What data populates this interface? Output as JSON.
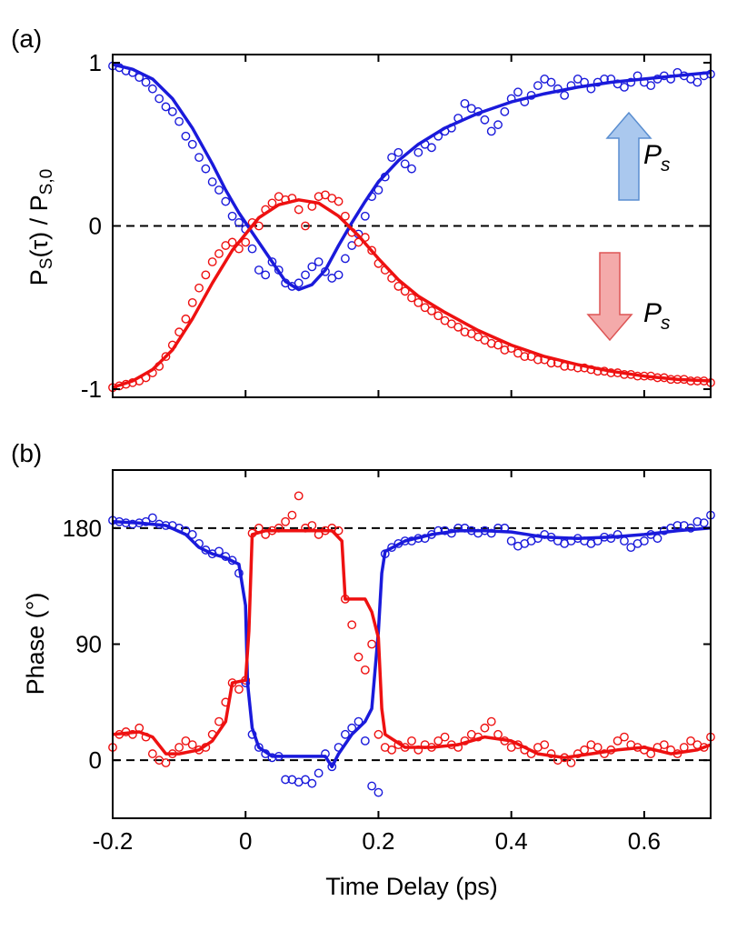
{
  "chart_data": [
    {
      "type": "line",
      "panel_label": "(a)",
      "ylabel": "P_S(τ) / P_S,0",
      "xlim": [
        -0.2,
        0.7
      ],
      "ylim": [
        -1.05,
        1.05
      ],
      "xticks": [
        "-0.2",
        "0",
        "0.2",
        "0.4",
        "0.6"
      ],
      "xtick_values": [
        -0.2,
        0,
        0.2,
        0.4,
        0.6
      ],
      "yticks": [
        "-1",
        "0",
        "1"
      ],
      "ytick_values": [
        -1,
        0,
        1
      ],
      "reference_line": 0,
      "legend": [
        {
          "label": "P",
          "subscript": "s",
          "arrow": "up",
          "color": "#aac8ee"
        },
        {
          "label": "P",
          "subscript": "s",
          "arrow": "down",
          "color": "#f4aaaa"
        }
      ],
      "series": [
        {
          "color": "#1a1adb",
          "style": "fit",
          "x": [
            -0.2,
            -0.17,
            -0.14,
            -0.11,
            -0.08,
            -0.05,
            -0.03,
            -0.01,
            0.0,
            0.02,
            0.04,
            0.06,
            0.08,
            0.1,
            0.12,
            0.14,
            0.16,
            0.18,
            0.2,
            0.23,
            0.26,
            0.3,
            0.35,
            0.4,
            0.45,
            0.5,
            0.55,
            0.6,
            0.65,
            0.7
          ],
          "y": [
            0.99,
            0.96,
            0.9,
            0.78,
            0.6,
            0.38,
            0.22,
            0.08,
            0.02,
            -0.1,
            -0.22,
            -0.34,
            -0.39,
            -0.36,
            -0.27,
            -0.12,
            0.02,
            0.15,
            0.27,
            0.4,
            0.5,
            0.6,
            0.69,
            0.76,
            0.81,
            0.85,
            0.88,
            0.9,
            0.92,
            0.94
          ]
        },
        {
          "color": "#ee1111",
          "style": "fit",
          "x": [
            -0.2,
            -0.17,
            -0.14,
            -0.11,
            -0.08,
            -0.05,
            -0.02,
            0.0,
            0.02,
            0.05,
            0.08,
            0.11,
            0.14,
            0.17,
            0.2,
            0.23,
            0.26,
            0.3,
            0.35,
            0.4,
            0.45,
            0.5,
            0.55,
            0.6,
            0.65,
            0.7
          ],
          "y": [
            -0.99,
            -0.95,
            -0.88,
            -0.76,
            -0.57,
            -0.35,
            -0.15,
            -0.05,
            0.05,
            0.13,
            0.16,
            0.14,
            0.06,
            -0.06,
            -0.2,
            -0.33,
            -0.43,
            -0.53,
            -0.64,
            -0.73,
            -0.8,
            -0.85,
            -0.89,
            -0.92,
            -0.94,
            -0.95
          ]
        },
        {
          "color": "#1a1adb",
          "style": "markers",
          "x": [
            -0.2,
            -0.19,
            -0.18,
            -0.17,
            -0.16,
            -0.15,
            -0.14,
            -0.13,
            -0.12,
            -0.11,
            -0.1,
            -0.09,
            -0.08,
            -0.07,
            -0.06,
            -0.05,
            -0.04,
            -0.03,
            -0.02,
            -0.01,
            0.0,
            0.01,
            0.02,
            0.03,
            0.04,
            0.05,
            0.06,
            0.07,
            0.08,
            0.09,
            0.1,
            0.11,
            0.12,
            0.13,
            0.14,
            0.15,
            0.16,
            0.17,
            0.18,
            0.19,
            0.2,
            0.21,
            0.22,
            0.23,
            0.24,
            0.25,
            0.26,
            0.27,
            0.28,
            0.29,
            0.3,
            0.31,
            0.32,
            0.33,
            0.34,
            0.35,
            0.36,
            0.37,
            0.38,
            0.39,
            0.4,
            0.41,
            0.42,
            0.43,
            0.44,
            0.45,
            0.46,
            0.47,
            0.48,
            0.49,
            0.5,
            0.51,
            0.52,
            0.53,
            0.54,
            0.55,
            0.56,
            0.57,
            0.58,
            0.59,
            0.6,
            0.61,
            0.62,
            0.63,
            0.64,
            0.65,
            0.66,
            0.67,
            0.68,
            0.69,
            0.7
          ],
          "y": [
            0.98,
            0.97,
            0.95,
            0.94,
            0.91,
            0.88,
            0.84,
            0.78,
            0.73,
            0.7,
            0.64,
            0.55,
            0.5,
            0.42,
            0.35,
            0.27,
            0.22,
            0.15,
            0.06,
            0.02,
            -0.02,
            -0.14,
            -0.27,
            -0.3,
            -0.22,
            -0.27,
            -0.35,
            -0.37,
            -0.35,
            -0.3,
            -0.25,
            -0.22,
            -0.28,
            -0.32,
            -0.3,
            -0.2,
            -0.12,
            -0.05,
            0.06,
            0.18,
            0.22,
            0.3,
            0.42,
            0.45,
            0.38,
            0.35,
            0.45,
            0.5,
            0.48,
            0.55,
            0.58,
            0.6,
            0.66,
            0.75,
            0.72,
            0.7,
            0.65,
            0.58,
            0.62,
            0.7,
            0.78,
            0.82,
            0.76,
            0.8,
            0.86,
            0.9,
            0.88,
            0.84,
            0.8,
            0.86,
            0.9,
            0.88,
            0.84,
            0.88,
            0.9,
            0.9,
            0.87,
            0.85,
            0.88,
            0.92,
            0.88,
            0.86,
            0.9,
            0.92,
            0.9,
            0.94,
            0.92,
            0.9,
            0.88,
            0.92,
            0.93
          ]
        },
        {
          "color": "#ee1111",
          "style": "markers",
          "x": [
            -0.2,
            -0.19,
            -0.18,
            -0.17,
            -0.16,
            -0.15,
            -0.14,
            -0.13,
            -0.12,
            -0.11,
            -0.1,
            -0.09,
            -0.08,
            -0.07,
            -0.06,
            -0.05,
            -0.04,
            -0.03,
            -0.02,
            -0.01,
            0.0,
            0.01,
            0.02,
            0.03,
            0.04,
            0.05,
            0.06,
            0.07,
            0.08,
            0.09,
            0.1,
            0.11,
            0.12,
            0.13,
            0.14,
            0.15,
            0.16,
            0.17,
            0.18,
            0.19,
            0.2,
            0.21,
            0.22,
            0.23,
            0.24,
            0.25,
            0.26,
            0.27,
            0.28,
            0.29,
            0.3,
            0.31,
            0.32,
            0.33,
            0.34,
            0.35,
            0.36,
            0.37,
            0.38,
            0.39,
            0.4,
            0.41,
            0.42,
            0.43,
            0.44,
            0.45,
            0.46,
            0.47,
            0.48,
            0.49,
            0.5,
            0.51,
            0.52,
            0.53,
            0.54,
            0.55,
            0.56,
            0.57,
            0.58,
            0.59,
            0.6,
            0.61,
            0.62,
            0.63,
            0.64,
            0.65,
            0.66,
            0.67,
            0.68,
            0.69,
            0.7
          ],
          "y": [
            -0.99,
            -0.98,
            -0.97,
            -0.96,
            -0.95,
            -0.93,
            -0.9,
            -0.86,
            -0.8,
            -0.73,
            -0.65,
            -0.57,
            -0.47,
            -0.38,
            -0.3,
            -0.22,
            -0.17,
            -0.12,
            -0.1,
            -0.14,
            -0.1,
            0.02,
            0.0,
            0.1,
            0.14,
            0.18,
            0.16,
            0.17,
            0.1,
            0.0,
            0.12,
            0.18,
            0.19,
            0.17,
            0.15,
            0.06,
            -0.04,
            -0.1,
            -0.07,
            -0.15,
            -0.23,
            -0.27,
            -0.32,
            -0.37,
            -0.4,
            -0.44,
            -0.47,
            -0.5,
            -0.52,
            -0.55,
            -0.58,
            -0.6,
            -0.62,
            -0.65,
            -0.66,
            -0.68,
            -0.7,
            -0.72,
            -0.73,
            -0.76,
            -0.75,
            -0.78,
            -0.8,
            -0.8,
            -0.82,
            -0.82,
            -0.84,
            -0.84,
            -0.86,
            -0.86,
            -0.87,
            -0.87,
            -0.88,
            -0.89,
            -0.89,
            -0.9,
            -0.9,
            -0.91,
            -0.91,
            -0.92,
            -0.92,
            -0.92,
            -0.93,
            -0.93,
            -0.94,
            -0.94,
            -0.94,
            -0.95,
            -0.95,
            -0.95,
            -0.96
          ]
        }
      ]
    },
    {
      "type": "line",
      "panel_label": "(b)",
      "xlabel": "Time Delay (ps)",
      "ylabel": "Phase (°)",
      "xlim": [
        -0.2,
        0.7
      ],
      "ylim": [
        -45,
        225
      ],
      "xticks": [
        "-0.2",
        "0",
        "0.2",
        "0.4",
        "0.6"
      ],
      "xtick_values": [
        -0.2,
        0,
        0.2,
        0.4,
        0.6
      ],
      "yticks": [
        "0",
        "90",
        "180"
      ],
      "ytick_values": [
        0,
        90,
        180
      ],
      "reference_lines": [
        0,
        180
      ],
      "series": [
        {
          "color": "#1a1adb",
          "style": "fit",
          "x": [
            -0.2,
            -0.16,
            -0.12,
            -0.09,
            -0.07,
            -0.05,
            -0.03,
            -0.01,
            0.0,
            0.003,
            0.01,
            0.02,
            0.04,
            0.08,
            0.12,
            0.13,
            0.14,
            0.16,
            0.18,
            0.19,
            0.2,
            0.205,
            0.21,
            0.24,
            0.28,
            0.32,
            0.36,
            0.4,
            0.45,
            0.5,
            0.55,
            0.6,
            0.65,
            0.7
          ],
          "y": [
            185,
            184,
            182,
            175,
            165,
            160,
            157,
            152,
            120,
            60,
            25,
            10,
            3,
            3,
            3,
            -5,
            5,
            20,
            30,
            40,
            100,
            145,
            162,
            170,
            175,
            178,
            178,
            177,
            173,
            172,
            173,
            175,
            178,
            180
          ]
        },
        {
          "color": "#ee1111",
          "style": "fit",
          "x": [
            -0.2,
            -0.16,
            -0.14,
            -0.12,
            -0.1,
            -0.07,
            -0.05,
            -0.03,
            -0.02,
            0.0,
            0.005,
            0.01,
            0.03,
            0.06,
            0.1,
            0.13,
            0.145,
            0.15,
            0.18,
            0.19,
            0.2,
            0.205,
            0.21,
            0.24,
            0.28,
            0.32,
            0.36,
            0.4,
            0.44,
            0.48,
            0.52,
            0.56,
            0.6,
            0.64,
            0.68,
            0.7
          ],
          "y": [
            20,
            22,
            18,
            5,
            5,
            8,
            15,
            30,
            60,
            62,
            100,
            175,
            178,
            178,
            178,
            178,
            170,
            125,
            125,
            115,
            95,
            40,
            20,
            10,
            10,
            12,
            18,
            15,
            5,
            2,
            5,
            8,
            10,
            5,
            8,
            12
          ]
        },
        {
          "color": "#1a1adb",
          "style": "markers",
          "x": [
            -0.2,
            -0.19,
            -0.18,
            -0.17,
            -0.16,
            -0.15,
            -0.14,
            -0.13,
            -0.12,
            -0.11,
            -0.1,
            -0.09,
            -0.08,
            -0.07,
            -0.06,
            -0.05,
            -0.04,
            -0.03,
            -0.02,
            -0.01,
            0.0,
            0.01,
            0.02,
            0.03,
            0.04,
            0.05,
            0.06,
            0.07,
            0.08,
            0.09,
            0.1,
            0.11,
            0.12,
            0.13,
            0.14,
            0.15,
            0.16,
            0.17,
            0.18,
            0.19,
            0.2,
            0.21,
            0.22,
            0.23,
            0.24,
            0.25,
            0.26,
            0.27,
            0.28,
            0.29,
            0.3,
            0.31,
            0.32,
            0.33,
            0.34,
            0.35,
            0.36,
            0.37,
            0.38,
            0.39,
            0.4,
            0.41,
            0.42,
            0.43,
            0.44,
            0.45,
            0.46,
            0.47,
            0.48,
            0.49,
            0.5,
            0.51,
            0.52,
            0.53,
            0.54,
            0.55,
            0.56,
            0.57,
            0.58,
            0.59,
            0.6,
            0.61,
            0.62,
            0.63,
            0.64,
            0.65,
            0.66,
            0.67,
            0.68,
            0.69,
            0.7
          ],
          "y": [
            186,
            185,
            184,
            183,
            184,
            185,
            188,
            183,
            182,
            182,
            180,
            178,
            175,
            168,
            163,
            160,
            162,
            158,
            155,
            145,
            60,
            20,
            10,
            5,
            2,
            3,
            -15,
            -15,
            -17,
            -15,
            -18,
            -10,
            5,
            -5,
            10,
            20,
            25,
            30,
            15,
            -20,
            -25,
            160,
            165,
            168,
            170,
            170,
            172,
            172,
            175,
            178,
            178,
            176,
            180,
            180,
            178,
            176,
            178,
            176,
            180,
            180,
            170,
            166,
            168,
            170,
            172,
            175,
            173,
            170,
            168,
            170,
            172,
            170,
            168,
            170,
            173,
            172,
            175,
            170,
            165,
            168,
            170,
            175,
            172,
            178,
            180,
            182,
            182,
            180,
            185,
            184,
            190
          ]
        },
        {
          "color": "#ee1111",
          "style": "markers",
          "x": [
            -0.2,
            -0.19,
            -0.18,
            -0.17,
            -0.16,
            -0.15,
            -0.14,
            -0.13,
            -0.12,
            -0.11,
            -0.1,
            -0.09,
            -0.08,
            -0.07,
            -0.06,
            -0.05,
            -0.04,
            -0.03,
            -0.02,
            -0.01,
            0.0,
            0.01,
            0.02,
            0.03,
            0.04,
            0.05,
            0.06,
            0.07,
            0.08,
            0.09,
            0.1,
            0.11,
            0.12,
            0.13,
            0.14,
            0.15,
            0.16,
            0.17,
            0.18,
            0.19,
            0.2,
            0.21,
            0.22,
            0.23,
            0.24,
            0.25,
            0.26,
            0.27,
            0.28,
            0.29,
            0.3,
            0.31,
            0.32,
            0.33,
            0.34,
            0.35,
            0.36,
            0.37,
            0.38,
            0.39,
            0.4,
            0.41,
            0.42,
            0.43,
            0.44,
            0.45,
            0.46,
            0.47,
            0.48,
            0.49,
            0.5,
            0.51,
            0.52,
            0.53,
            0.54,
            0.55,
            0.56,
            0.57,
            0.58,
            0.59,
            0.6,
            0.61,
            0.62,
            0.63,
            0.64,
            0.65,
            0.66,
            0.67,
            0.68,
            0.69,
            0.7
          ],
          "y": [
            10,
            20,
            22,
            20,
            25,
            18,
            5,
            0,
            -2,
            5,
            10,
            15,
            12,
            8,
            10,
            20,
            30,
            45,
            60,
            55,
            62,
            176,
            180,
            175,
            178,
            180,
            185,
            190,
            205,
            180,
            182,
            175,
            178,
            180,
            178,
            125,
            105,
            80,
            70,
            90,
            20,
            10,
            8,
            12,
            10,
            15,
            8,
            12,
            10,
            15,
            18,
            12,
            10,
            15,
            20,
            18,
            25,
            30,
            20,
            15,
            10,
            12,
            8,
            5,
            10,
            12,
            5,
            0,
            2,
            -2,
            5,
            8,
            12,
            10,
            5,
            8,
            15,
            18,
            12,
            10,
            8,
            5,
            10,
            12,
            8,
            5,
            10,
            15,
            12,
            10,
            18
          ]
        }
      ]
    }
  ]
}
